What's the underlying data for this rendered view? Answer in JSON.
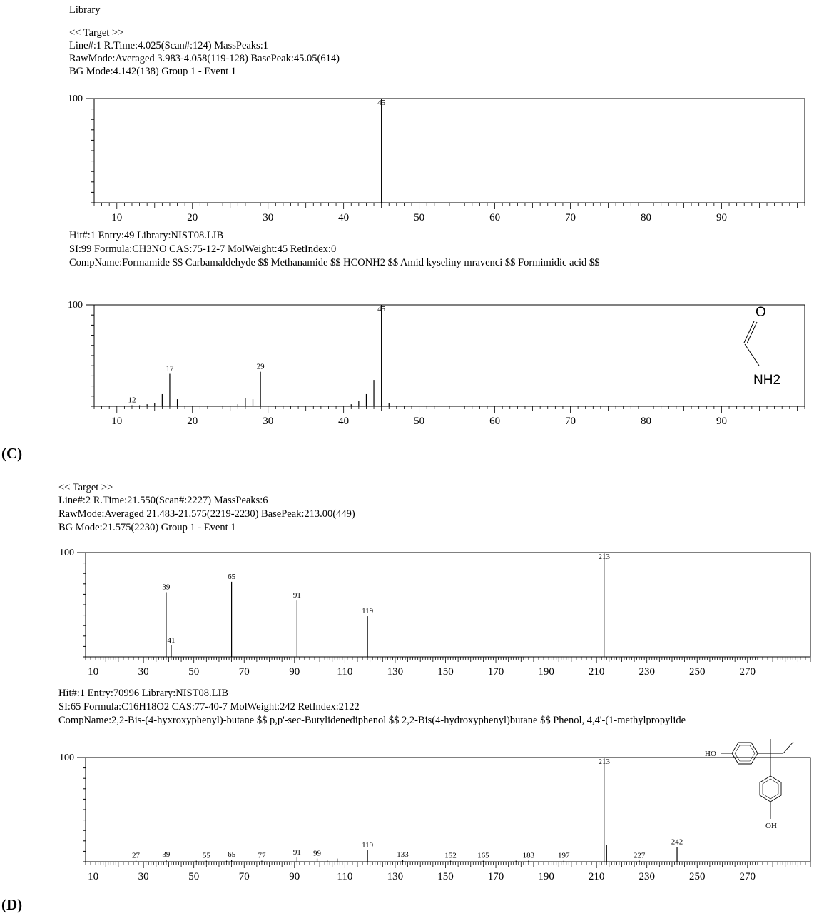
{
  "header_label": "Library",
  "panel_labels": {
    "c": "(C)",
    "d": "(D)"
  },
  "section_c": {
    "target": {
      "heading": "<< Target >>",
      "line1": "Line#:1  R.Time:4.025(Scan#:124)  MassPeaks:1",
      "line2": "RawMode:Averaged 3.983-4.058(119-128) BasePeak:45.05(614)",
      "line3": "BG Mode:4.142(138)  Group 1 - Event 1"
    },
    "hit": {
      "line1": "Hit#:1  Entry:49  Library:NIST08.LIB",
      "line2": "SI:99  Formula:CH3NO  CAS:75-12-7  MolWeight:45  RetIndex:0",
      "line3": "CompName:Formamide $$ Carbamaldehyde $$ Methanamide $$ HCONH2 $$ Amid kyseliny mravenci $$ Formimidic acid $$"
    },
    "structure_labels": {
      "oxygen": "O",
      "amine": "NH2"
    }
  },
  "section_d": {
    "target": {
      "heading": "<< Target >>",
      "line1": "Line#:2  R.Time:21.550(Scan#:2227)  MassPeaks:6",
      "line2": "RawMode:Averaged 21.483-21.575(2219-2230) BasePeak:213.00(449)",
      "line3": "BG Mode:21.575(2230)  Group 1 - Event 1"
    },
    "hit": {
      "line1": "Hit#:1  Entry:70996  Library:NIST08.LIB",
      "line2": "SI:65  Formula:C16H18O2  CAS:77-40-7  MolWeight:242  RetIndex:2122",
      "line3": "CompName:2,2-Bis-(4-hyxroxyphenyl)-butane $$ p,p'-sec-Butylidenediphenol $$ 2,2-Bis(4-hydroxyphenyl)butane $$ Phenol, 4,4'-(1-methylpropylide"
    },
    "structure_labels": {
      "ho": "HO",
      "oh": "OH"
    }
  },
  "chart_data": [
    {
      "type": "bar",
      "title": "",
      "xlabel": "",
      "ylabel": "",
      "xlim": [
        7,
        101
      ],
      "ylim": [
        0,
        100
      ],
      "xticks": [
        10,
        20,
        30,
        40,
        50,
        60,
        70,
        80,
        90
      ],
      "y_top_label": "100",
      "peaks": [
        {
          "mz": 45,
          "intensity": 100,
          "label": "45"
        }
      ]
    },
    {
      "type": "bar",
      "title": "",
      "xlabel": "",
      "ylabel": "",
      "xlim": [
        7,
        101
      ],
      "ylim": [
        0,
        100
      ],
      "xticks": [
        10,
        20,
        30,
        40,
        50,
        60,
        70,
        80,
        90
      ],
      "y_top_label": "100",
      "peaks": [
        {
          "mz": 12,
          "intensity": 1,
          "label": "12"
        },
        {
          "mz": 13,
          "intensity": 1
        },
        {
          "mz": 14,
          "intensity": 2
        },
        {
          "mz": 15,
          "intensity": 3
        },
        {
          "mz": 16,
          "intensity": 12
        },
        {
          "mz": 17,
          "intensity": 32,
          "label": "17"
        },
        {
          "mz": 18,
          "intensity": 7
        },
        {
          "mz": 26,
          "intensity": 2
        },
        {
          "mz": 27,
          "intensity": 8
        },
        {
          "mz": 28,
          "intensity": 7
        },
        {
          "mz": 29,
          "intensity": 34,
          "label": "29"
        },
        {
          "mz": 41,
          "intensity": 2
        },
        {
          "mz": 42,
          "intensity": 5
        },
        {
          "mz": 43,
          "intensity": 12
        },
        {
          "mz": 44,
          "intensity": 26
        },
        {
          "mz": 45,
          "intensity": 100,
          "label": "45"
        },
        {
          "mz": 46,
          "intensity": 3
        }
      ]
    },
    {
      "type": "bar",
      "title": "",
      "xlabel": "",
      "ylabel": "",
      "xlim": [
        7,
        295
      ],
      "ylim": [
        0,
        100
      ],
      "xticks": [
        10,
        30,
        50,
        70,
        90,
        110,
        130,
        150,
        170,
        190,
        210,
        230,
        250,
        270
      ],
      "y_top_label": "100",
      "peaks": [
        {
          "mz": 39,
          "intensity": 62,
          "label": "39"
        },
        {
          "mz": 41,
          "intensity": 11,
          "label": "41"
        },
        {
          "mz": 65,
          "intensity": 72,
          "label": "65"
        },
        {
          "mz": 91,
          "intensity": 54,
          "label": "91"
        },
        {
          "mz": 119,
          "intensity": 39,
          "label": "119"
        },
        {
          "mz": 213,
          "intensity": 100,
          "label": "213"
        }
      ]
    },
    {
      "type": "bar",
      "title": "",
      "xlabel": "",
      "ylabel": "",
      "xlim": [
        7,
        295
      ],
      "ylim": [
        0,
        100
      ],
      "xticks": [
        10,
        30,
        50,
        70,
        90,
        110,
        130,
        150,
        170,
        190,
        210,
        230,
        250,
        270
      ],
      "y_top_label": "100",
      "peaks": [
        {
          "mz": 27,
          "intensity": 1,
          "label": "27"
        },
        {
          "mz": 39,
          "intensity": 2,
          "label": "39"
        },
        {
          "mz": 51,
          "intensity": 1
        },
        {
          "mz": 55,
          "intensity": 1,
          "label": "55"
        },
        {
          "mz": 63,
          "intensity": 1
        },
        {
          "mz": 65,
          "intensity": 2,
          "label": "65"
        },
        {
          "mz": 77,
          "intensity": 1,
          "label": "77"
        },
        {
          "mz": 91,
          "intensity": 4,
          "label": "91"
        },
        {
          "mz": 99,
          "intensity": 3,
          "label": "99"
        },
        {
          "mz": 103,
          "intensity": 2
        },
        {
          "mz": 107,
          "intensity": 3
        },
        {
          "mz": 119,
          "intensity": 11,
          "label": "119"
        },
        {
          "mz": 133,
          "intensity": 2,
          "label": "133"
        },
        {
          "mz": 152,
          "intensity": 1,
          "label": "152"
        },
        {
          "mz": 165,
          "intensity": 1,
          "label": "165"
        },
        {
          "mz": 178,
          "intensity": 1
        },
        {
          "mz": 183,
          "intensity": 1,
          "label": "183"
        },
        {
          "mz": 197,
          "intensity": 1,
          "label": "197"
        },
        {
          "mz": 213,
          "intensity": 100,
          "label": "213"
        },
        {
          "mz": 214,
          "intensity": 16
        },
        {
          "mz": 227,
          "intensity": 1,
          "label": "227"
        },
        {
          "mz": 242,
          "intensity": 14,
          "label": "242"
        }
      ]
    }
  ]
}
